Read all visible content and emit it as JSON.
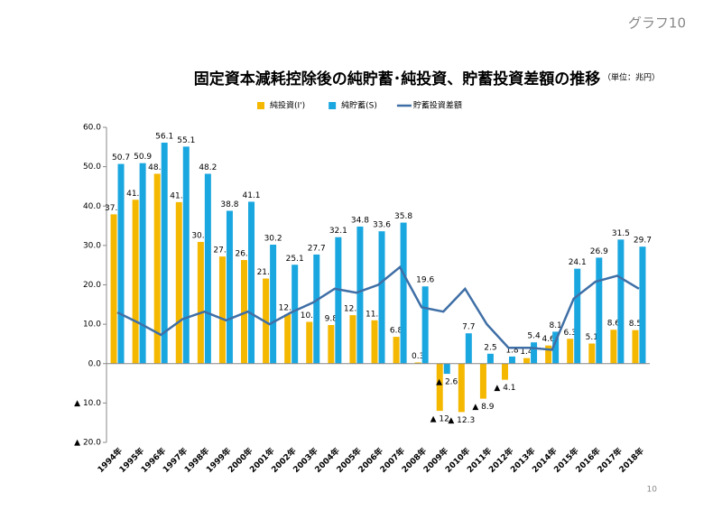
{
  "chart_data": {
    "type": "bar",
    "corner_label": "グラフ10",
    "title": "固定資本減耗控除後の純貯蓄･純投資、貯蓄投資差額の推移",
    "unit": "（単位：兆円）",
    "page_number": "10",
    "categories": [
      "1994年",
      "1995年",
      "1996年",
      "1997年",
      "1998年",
      "1999年",
      "2000年",
      "2001年",
      "2002年",
      "2003年",
      "2004年",
      "2005年",
      "2006年",
      "2007年",
      "2008年",
      "2009年",
      "2010年",
      "2011年",
      "2012年",
      "2013年",
      "2014年",
      "2015年",
      "2016年",
      "2017年",
      "2018年"
    ],
    "series": [
      {
        "name": "純投資(I')",
        "type": "bar",
        "color": "#f5b800",
        "values": [
          37.9,
          41.6,
          48.2,
          41.0,
          30.9,
          27.2,
          26.3,
          21.6,
          12.5,
          10.6,
          9.8,
          12.3,
          11.0,
          6.8,
          0.3,
          -12,
          -12.3,
          -8.9,
          -4.1,
          1.4,
          4.6,
          6.3,
          5.1,
          8.6,
          8.5
        ],
        "value_labels": [
          "37.9",
          "41.6",
          "48.2",
          "41.0",
          "30.9",
          "27.2",
          "26.3",
          "21.6",
          "12.5",
          "10.6",
          "9.8",
          "12.3",
          "11.0",
          "6.8",
          "0.3",
          "▲ 12",
          "▲ 12.3",
          "▲ 8.9",
          "▲ 4.1",
          "1.4",
          "4.6",
          "6.3",
          "5.1",
          "8.6",
          "8.5"
        ]
      },
      {
        "name": "純貯蓄(S)",
        "type": "bar",
        "color": "#1aa7e0",
        "values": [
          50.7,
          50.9,
          56.1,
          55.1,
          48.2,
          38.8,
          41.1,
          30.2,
          25.1,
          27.7,
          32.1,
          34.8,
          33.6,
          35.8,
          19.6,
          -2.6,
          7.7,
          2.5,
          1.8,
          5.4,
          8.1,
          24.1,
          26.9,
          31.5,
          29.7
        ],
        "value_labels": [
          "50.7",
          "50.9",
          "56.1",
          "55.1",
          "48.2",
          "38.8",
          "41.1",
          "30.2",
          "25.1",
          "27.7",
          "32.1",
          "34.8",
          "33.6",
          "35.8",
          "19.6",
          "▲ 2.6",
          "7.7",
          "2.5",
          "1.8",
          "5.4",
          "8.1",
          "24.1",
          "26.9",
          "31.5",
          "29.7"
        ]
      },
      {
        "name": "貯蓄投資差額",
        "type": "line",
        "color": "#3f6fa6",
        "values": [
          13,
          10.3,
          7.3,
          11.3,
          13.2,
          11,
          13.2,
          10,
          13,
          15.5,
          19,
          18,
          20,
          24.5,
          14.3,
          13.2,
          19,
          10,
          4,
          4,
          3.5,
          16.5,
          20.8,
          22.3,
          19
        ]
      }
    ],
    "ylim": [
      -20,
      60
    ],
    "yticks": [
      {
        "value": -20,
        "label": "▲ 20.0"
      },
      {
        "value": -10,
        "label": "▲ 10.0"
      },
      {
        "value": 0,
        "label": "0.0"
      },
      {
        "value": 10,
        "label": "10.0"
      },
      {
        "value": 20,
        "label": "20.0"
      },
      {
        "value": 30,
        "label": "30.0"
      },
      {
        "value": 40,
        "label": "40.0"
      },
      {
        "value": 50,
        "label": "50.0"
      },
      {
        "value": 60,
        "label": "60.0"
      }
    ],
    "legend": "top",
    "grid": false
  }
}
